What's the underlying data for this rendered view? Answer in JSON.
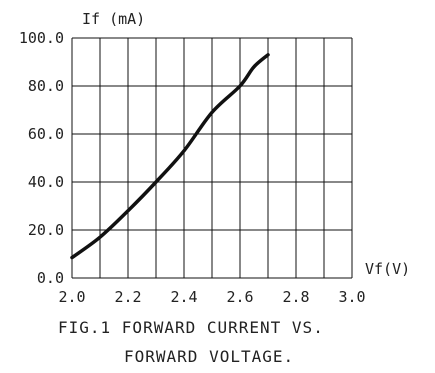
{
  "chart_data": {
    "type": "line",
    "ylabel": "If (mA)",
    "xlabel": "Vf(V)",
    "caption_line1": "FIG.1 FORWARD CURRENT VS.",
    "caption_line2": "FORWARD VOLTAGE.",
    "xlim": [
      2.0,
      3.0
    ],
    "ylim": [
      0.0,
      100.0
    ],
    "x_ticks": [
      "2.0",
      "2.2",
      "2.4",
      "2.6",
      "2.8",
      "3.0"
    ],
    "y_ticks": [
      "100.0",
      "80.0",
      "60.0",
      "40.0",
      "20.0",
      "0.0"
    ],
    "grid": true,
    "series": [
      {
        "x": [
          2.0,
          2.1,
          2.2,
          2.3,
          2.4,
          2.5,
          2.6,
          2.65,
          2.7
        ],
        "y": [
          8.5,
          17,
          28,
          40,
          53,
          69,
          80,
          88,
          93
        ]
      }
    ]
  }
}
